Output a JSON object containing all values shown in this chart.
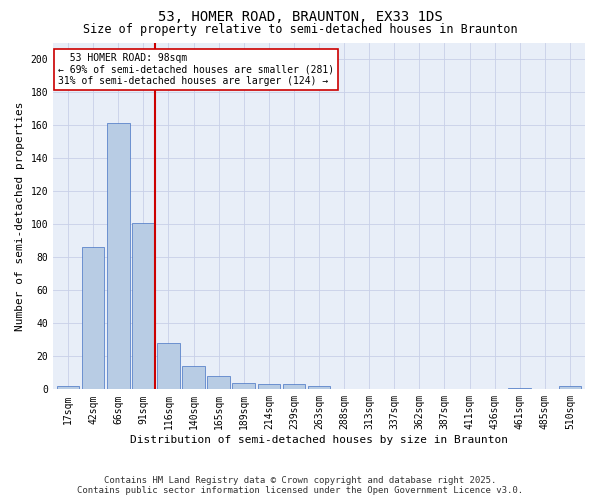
{
  "title": "53, HOMER ROAD, BRAUNTON, EX33 1DS",
  "subtitle": "Size of property relative to semi-detached houses in Braunton",
  "xlabel": "Distribution of semi-detached houses by size in Braunton",
  "ylabel": "Number of semi-detached properties",
  "bin_labels": [
    "17sqm",
    "42sqm",
    "66sqm",
    "91sqm",
    "116sqm",
    "140sqm",
    "165sqm",
    "189sqm",
    "214sqm",
    "239sqm",
    "263sqm",
    "288sqm",
    "313sqm",
    "337sqm",
    "362sqm",
    "387sqm",
    "411sqm",
    "436sqm",
    "461sqm",
    "485sqm",
    "510sqm"
  ],
  "bar_values": [
    2,
    86,
    161,
    101,
    28,
    14,
    8,
    4,
    3,
    3,
    2,
    0,
    0,
    0,
    0,
    0,
    0,
    0,
    1,
    0,
    2
  ],
  "bar_color": "#b8cce4",
  "bar_edge_color": "#4472c4",
  "property_label": "53 HOMER ROAD: 98sqm",
  "pct_smaller": 69,
  "count_smaller": 281,
  "pct_larger": 31,
  "count_larger": 124,
  "vline_color": "#cc0000",
  "annotation_box_color": "#cc0000",
  "ylim": [
    0,
    210
  ],
  "yticks": [
    0,
    20,
    40,
    60,
    80,
    100,
    120,
    140,
    160,
    180,
    200
  ],
  "footer_line1": "Contains HM Land Registry data © Crown copyright and database right 2025.",
  "footer_line2": "Contains public sector information licensed under the Open Government Licence v3.0.",
  "bg_color": "#e8eef8",
  "grid_color": "#c8d0e8",
  "title_fontsize": 10,
  "subtitle_fontsize": 8.5,
  "axis_label_fontsize": 8,
  "tick_fontsize": 7,
  "footer_fontsize": 6.5
}
